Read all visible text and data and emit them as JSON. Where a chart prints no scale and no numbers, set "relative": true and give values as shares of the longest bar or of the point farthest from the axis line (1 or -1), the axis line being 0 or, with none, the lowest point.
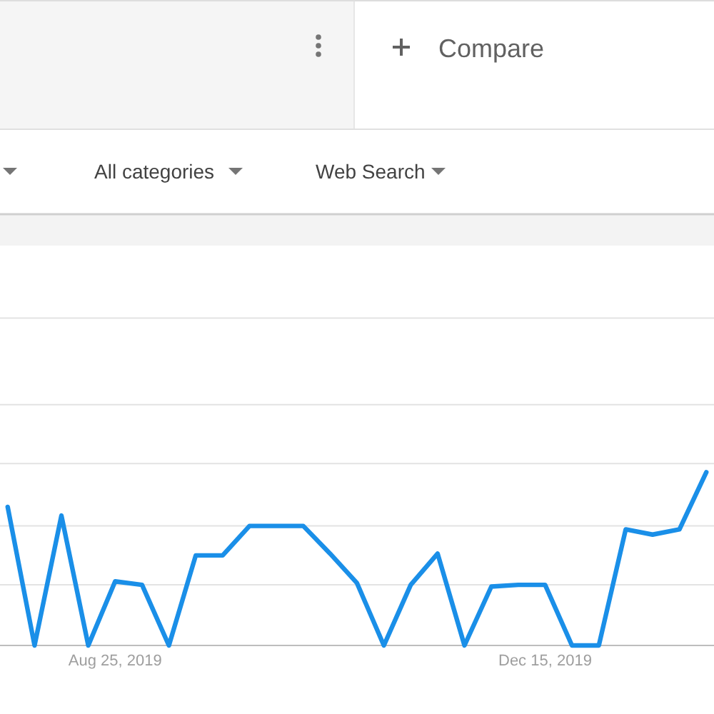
{
  "chart_data": {
    "type": "line",
    "relative": true,
    "x": [
      "2019-07-28",
      "2019-08-04",
      "2019-08-11",
      "2019-08-18",
      "2019-08-25",
      "2019-09-01",
      "2019-09-08",
      "2019-09-15",
      "2019-09-22",
      "2019-09-29",
      "2019-10-06",
      "2019-10-13",
      "2019-10-20",
      "2019-10-27",
      "2019-11-03",
      "2019-11-10",
      "2019-11-17",
      "2019-11-24",
      "2019-12-01",
      "2019-12-08",
      "2019-12-15",
      "2019-12-22",
      "2019-12-29",
      "2020-01-05",
      "2020-01-12",
      "2020-01-19",
      "2020-01-26"
    ],
    "series": [
      {
        "color": "#1a8fe8",
        "values": [
          0.8,
          0,
          0.75,
          0,
          0.37,
          0.35,
          0,
          0.52,
          0.52,
          0.69,
          0.69,
          0.69,
          0.53,
          0.36,
          0,
          0.35,
          0.53,
          0,
          0.34,
          0.35,
          0.35,
          0,
          0,
          0.67,
          0.64,
          0.67,
          1
        ]
      }
    ],
    "xlim": [
      "2019-07-26",
      "2020-01-28"
    ],
    "xticks": [
      {
        "value": "2019-08-25",
        "label": "Aug 25, 2019"
      },
      {
        "value": "2019-12-15",
        "label": "Dec 15, 2019"
      }
    ],
    "ref_lines": [
      {
        "axis": "y",
        "value": 0.35,
        "color": "#e3e3e3"
      },
      {
        "axis": "y",
        "value": 0.69,
        "color": "#e3e3e3"
      },
      {
        "axis": "y",
        "value": 1.05,
        "color": "#e3e3e3"
      },
      {
        "axis": "y",
        "value": 1.39,
        "color": "#e3e3e3"
      },
      {
        "axis": "y",
        "value": 1.89,
        "color": "#e3e3e3"
      }
    ],
    "line_style": "solid",
    "annotations": [
      "Compare",
      "All categories",
      "Web Search"
    ]
  }
}
